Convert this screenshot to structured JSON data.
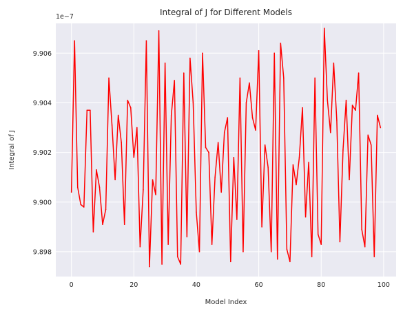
{
  "chart_data": {
    "type": "line",
    "title": "Integral of J for Different Models",
    "xlabel": "Model Index",
    "ylabel": "Integral of J",
    "offset_text": "1e−7",
    "xlim": [
      -5,
      104
    ],
    "ylim": [
      9.897,
      9.9072
    ],
    "xticks": [
      0,
      20,
      40,
      60,
      80,
      100
    ],
    "xtick_labels": [
      "0",
      "20",
      "40",
      "60",
      "80",
      "100"
    ],
    "yticks": [
      9.898,
      9.9,
      9.902,
      9.904,
      9.906
    ],
    "ytick_labels": [
      "9.898",
      "9.900",
      "9.902",
      "9.904",
      "9.906"
    ],
    "grid": true,
    "colors": {
      "plot_background": "#eaeaf2",
      "grid": "#ffffff",
      "line": "#ff0000"
    },
    "series": [
      {
        "line_color": "#ff0000",
        "x": [
          0,
          1,
          2,
          3,
          4,
          5,
          6,
          7,
          8,
          9,
          10,
          11,
          12,
          13,
          14,
          15,
          16,
          17,
          18,
          19,
          20,
          21,
          22,
          23,
          24,
          25,
          26,
          27,
          28,
          29,
          30,
          31,
          32,
          33,
          34,
          35,
          36,
          37,
          38,
          39,
          40,
          41,
          42,
          43,
          44,
          45,
          46,
          47,
          48,
          49,
          50,
          51,
          52,
          53,
          54,
          55,
          56,
          57,
          58,
          59,
          60,
          61,
          62,
          63,
          64,
          65,
          66,
          67,
          68,
          69,
          70,
          71,
          72,
          73,
          74,
          75,
          76,
          77,
          78,
          79,
          80,
          81,
          82,
          83,
          84,
          85,
          86,
          87,
          88,
          89,
          90,
          91,
          92,
          93,
          94,
          95,
          96,
          97,
          98,
          99
        ],
        "y": [
          9.9004,
          9.9065,
          9.9006,
          9.8999,
          9.8998,
          9.9037,
          9.9037,
          9.8988,
          9.9013,
          9.9006,
          9.8991,
          9.8997,
          9.905,
          9.9031,
          9.9009,
          9.9035,
          9.9024,
          9.8991,
          9.9041,
          9.9038,
          9.9018,
          9.903,
          9.8982,
          9.9005,
          9.9065,
          9.8974,
          9.9009,
          9.9003,
          9.9069,
          9.8975,
          9.9056,
          9.8983,
          9.9035,
          9.9049,
          9.8978,
          9.8975,
          9.9052,
          9.8986,
          9.9058,
          9.904,
          9.8996,
          9.898,
          9.906,
          9.9022,
          9.902,
          9.8983,
          9.901,
          9.9024,
          9.9004,
          9.9028,
          9.9034,
          9.8976,
          9.9018,
          9.8993,
          9.905,
          9.898,
          9.904,
          9.9048,
          9.9034,
          9.9029,
          9.9061,
          9.899,
          9.9023,
          9.9014,
          9.898,
          9.906,
          9.8977,
          9.9064,
          9.905,
          9.8981,
          9.8976,
          9.9015,
          9.9007,
          9.9018,
          9.9038,
          9.8994,
          9.9016,
          9.8978,
          9.905,
          9.8987,
          9.8983,
          9.907,
          9.9041,
          9.9028,
          9.9056,
          9.9033,
          9.8984,
          9.9021,
          9.9041,
          9.9009,
          9.9039,
          9.9037,
          9.9052,
          9.8989,
          9.8982,
          9.9027,
          9.9023,
          9.8978,
          9.9035,
          9.903
        ]
      }
    ]
  }
}
